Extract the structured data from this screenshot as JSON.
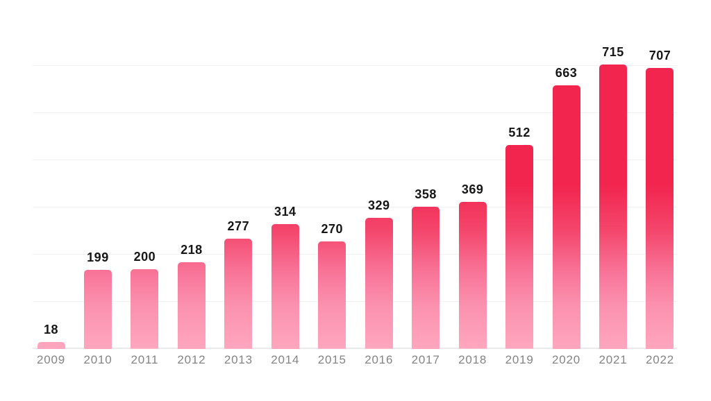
{
  "chart_data": {
    "type": "bar",
    "categories": [
      "2009",
      "2010",
      "2011",
      "2012",
      "2013",
      "2014",
      "2015",
      "2016",
      "2017",
      "2018",
      "2019",
      "2020",
      "2021",
      "2022"
    ],
    "values": [
      18,
      199,
      200,
      218,
      277,
      314,
      270,
      329,
      358,
      369,
      512,
      663,
      715,
      707
    ],
    "title": "",
    "xlabel": "",
    "ylabel": "",
    "ylim": [
      0,
      715
    ],
    "grid": true,
    "legend": false,
    "value_labels_shown": true,
    "colors": {
      "bar_gradient_top": "#F2254E",
      "bar_gradient_bottom": "#FFA6BE",
      "value_label": "#161616",
      "axis_label": "#848484",
      "gridline": "#F1F1F1",
      "axis_line": "#EAEAEA",
      "background": "#FFFFFF"
    }
  }
}
